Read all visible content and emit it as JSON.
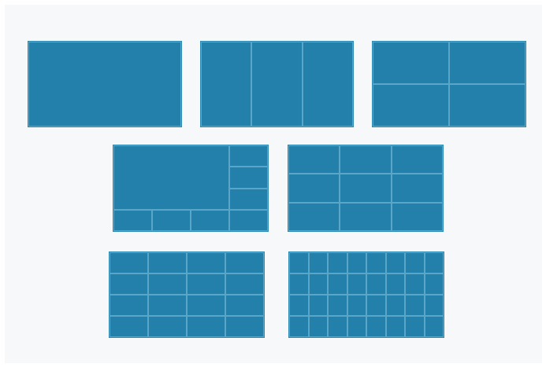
{
  "theme": {
    "canvas_bg": "#f6f8fa",
    "tile_fill": "#2380ab",
    "grid_line": "#5aa6c8"
  },
  "layouts": [
    {
      "id": "single",
      "cols": 1,
      "rows": 1
    },
    {
      "id": "three-columns",
      "cols": 3,
      "rows": 1
    },
    {
      "id": "two-by-two",
      "cols": 2,
      "rows": 2
    },
    {
      "id": "one-plus-seven",
      "cols": 4,
      "rows": 4,
      "featured": {
        "span_cols": 3,
        "span_rows": 3
      }
    },
    {
      "id": "three-by-three",
      "cols": 3,
      "rows": 3
    },
    {
      "id": "four-by-four",
      "cols": 4,
      "rows": 4
    },
    {
      "id": "eight-by-four",
      "cols": 8,
      "rows": 4
    }
  ]
}
